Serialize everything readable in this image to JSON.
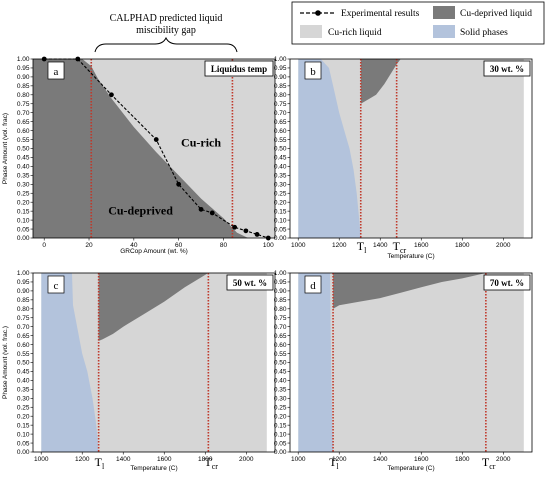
{
  "legend": {
    "items": [
      {
        "label": "Experimental results",
        "kind": "line-marker",
        "color": "#000000"
      },
      {
        "label": "Cu-deprived liquid",
        "kind": "patch",
        "color": "#7a7a7a"
      },
      {
        "label": "Cu-rich liquid",
        "kind": "patch",
        "color": "#d6d6d6"
      },
      {
        "label": "Solid phases",
        "kind": "patch",
        "color": "#b3c3dc"
      }
    ]
  },
  "gap_annotation": {
    "line1": "CALPHAD predicted liquid",
    "line2": "miscibility gap"
  },
  "colors": {
    "cu_deprived": "#7a7a7a",
    "cu_rich": "#d6d6d6",
    "solid": "#b3c3dc",
    "marker_line": "#c0392b"
  },
  "chart_data": [
    {
      "id": "a",
      "type": "area",
      "panel_label": "a",
      "badge": "Liquidus temp",
      "xlabel": "GRCop Amount (wt. %)",
      "ylabel": "Phase Amount (vol. frac)",
      "xlim": [
        -5,
        103
      ],
      "ylim": [
        0,
        1.0
      ],
      "xticks": [
        0,
        20,
        40,
        60,
        80,
        100
      ],
      "yticks": [
        0.0,
        0.05,
        0.1,
        0.15,
        0.2,
        0.25,
        0.3,
        0.35,
        0.4,
        0.45,
        0.5,
        0.55,
        0.6,
        0.65,
        0.7,
        0.75,
        0.8,
        0.85,
        0.9,
        0.95,
        1.0
      ],
      "region_labels": [
        {
          "text": "Cu-rich",
          "x": 70,
          "y": 0.51
        },
        {
          "text": "Cu-deprived",
          "x": 43,
          "y": 0.13
        }
      ],
      "vlines": [
        21,
        84
      ],
      "boundary": {
        "x": [
          -5,
          17,
          21,
          24,
          30,
          40,
          50,
          60,
          70,
          80,
          86,
          91,
          93,
          103
        ],
        "y": [
          1.0,
          1.0,
          0.96,
          0.89,
          0.78,
          0.62,
          0.48,
          0.35,
          0.22,
          0.11,
          0.03,
          0.0,
          0.0,
          0.0
        ]
      },
      "experimental": {
        "name": "Experimental results",
        "x": [
          0,
          15,
          30,
          50,
          60,
          70,
          75,
          85,
          90,
          95,
          100
        ],
        "y": [
          1.0,
          1.0,
          0.8,
          0.55,
          0.3,
          0.16,
          0.14,
          0.06,
          0.04,
          0.02,
          0.0
        ]
      }
    },
    {
      "id": "b",
      "type": "area",
      "panel_label": "b",
      "badge": "30 wt. %",
      "xlabel": "Temperature (C)",
      "ylabel": "",
      "xlim": [
        960,
        2140
      ],
      "ylim": [
        0,
        1.0
      ],
      "xticks": [
        1000,
        1200,
        1400,
        1600,
        1800,
        2000
      ],
      "yticks": [
        0.0,
        0.05,
        0.1,
        0.15,
        0.2,
        0.25,
        0.3,
        0.35,
        0.4,
        0.45,
        0.5,
        0.55,
        0.6,
        0.65,
        0.7,
        0.75,
        0.8,
        0.85,
        0.9,
        0.95,
        1.0
      ],
      "vlines": [
        1305,
        1480
      ],
      "vline_labels": [
        {
          "main": "T",
          "sub": "l",
          "x": 1305
        },
        {
          "main": "T",
          "sub": "cr",
          "x": 1480
        }
      ],
      "solid": {
        "x": [
          1000,
          1110,
          1150,
          1170,
          1200,
          1225,
          1250,
          1270,
          1285,
          1298,
          1305
        ],
        "y": [
          1.0,
          1.0,
          0.95,
          0.85,
          0.7,
          0.6,
          0.5,
          0.38,
          0.25,
          0.1,
          0.0
        ]
      },
      "deprived_lower": {
        "x": [
          1305,
          1320,
          1350,
          1380,
          1420,
          1480,
          1500,
          2100
        ],
        "y": [
          0.75,
          0.76,
          0.78,
          0.8,
          0.86,
          0.97,
          1.0,
          1.0
        ]
      }
    },
    {
      "id": "c",
      "type": "area",
      "panel_label": "c",
      "badge": "50 wt. %",
      "xlabel": "Temperature (C)",
      "ylabel": "Phase Amount (vol. frac.)",
      "xlim": [
        960,
        2140
      ],
      "ylim": [
        0,
        1.0
      ],
      "xticks": [
        1000,
        1200,
        1400,
        1600,
        1800,
        2000
      ],
      "yticks": [
        0.0,
        0.05,
        0.1,
        0.15,
        0.2,
        0.25,
        0.3,
        0.35,
        0.4,
        0.45,
        0.5,
        0.55,
        0.6,
        0.65,
        0.7,
        0.75,
        0.8,
        0.85,
        0.9,
        0.95,
        1.0
      ],
      "vlines": [
        1280,
        1815
      ],
      "vline_labels": [
        {
          "main": "T",
          "sub": "l",
          "x": 1280
        },
        {
          "main": "T",
          "sub": "cr",
          "x": 1815
        }
      ],
      "solid": {
        "x": [
          1000,
          1150,
          1155,
          1175,
          1200,
          1225,
          1250,
          1265,
          1275,
          1280
        ],
        "y": [
          1.0,
          1.0,
          0.82,
          0.7,
          0.55,
          0.45,
          0.3,
          0.18,
          0.08,
          0.0
        ]
      },
      "deprived_lower": {
        "x": [
          1280,
          1300,
          1350,
          1400,
          1500,
          1600,
          1700,
          1815
        ],
        "y": [
          0.62,
          0.63,
          0.66,
          0.7,
          0.77,
          0.84,
          0.92,
          1.0
        ]
      }
    },
    {
      "id": "d",
      "type": "area",
      "panel_label": "d",
      "badge": "70 wt. %",
      "xlabel": "Temperature (C)",
      "ylabel": "",
      "xlim": [
        960,
        2140
      ],
      "ylim": [
        0,
        1.0
      ],
      "xticks": [
        1000,
        1200,
        1400,
        1600,
        1800,
        2000
      ],
      "yticks": [
        0.0,
        0.05,
        0.1,
        0.15,
        0.2,
        0.25,
        0.3,
        0.35,
        0.4,
        0.45,
        0.5,
        0.55,
        0.6,
        0.65,
        0.7,
        0.75,
        0.8,
        0.85,
        0.9,
        0.95,
        1.0
      ],
      "vlines": [
        1170,
        1915
      ],
      "vline_labels": [
        {
          "main": "T",
          "sub": "l",
          "x": 1170
        },
        {
          "main": "T",
          "sub": "cr",
          "x": 1915
        }
      ],
      "solid": {
        "x": [
          1000,
          1155,
          1158,
          1162,
          1166,
          1170
        ],
        "y": [
          1.0,
          1.0,
          0.7,
          0.4,
          0.15,
          0.0
        ]
      },
      "deprived_lower": {
        "x": [
          1170,
          1200,
          1300,
          1400,
          1500,
          1600,
          1700,
          1800,
          1915
        ],
        "y": [
          0.8,
          0.82,
          0.84,
          0.86,
          0.89,
          0.92,
          0.95,
          0.97,
          1.0
        ]
      }
    }
  ]
}
